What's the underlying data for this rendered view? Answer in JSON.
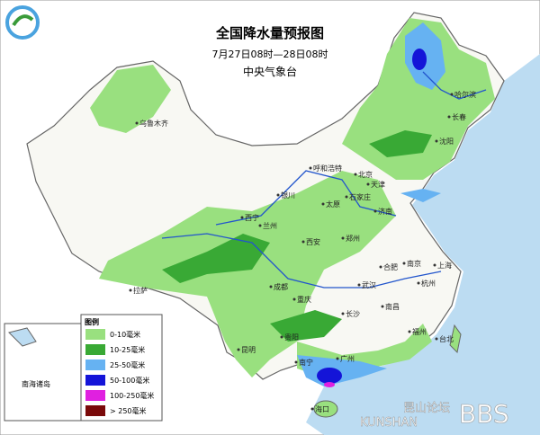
{
  "header": {
    "title": "全国降水量预报图",
    "period": "7月27日08时—28日08时",
    "source": "中央气象台"
  },
  "legend": {
    "title": "图例",
    "items": [
      {
        "label": "0-10毫米",
        "color": "#99e07f"
      },
      {
        "label": "10-25毫米",
        "color": "#39a935"
      },
      {
        "label": "25-50毫米",
        "color": "#66b2f2"
      },
      {
        "label": "50-100毫米",
        "color": "#1414d8"
      },
      {
        "label": "100-250毫米",
        "color": "#e020e0"
      },
      {
        "label": "> 250毫米",
        "color": "#7a0a0a"
      }
    ]
  },
  "inset": {
    "label": "南海诸岛"
  },
  "cities": [
    "乌鲁木齐",
    "哈尔滨",
    "长春",
    "沈阳",
    "呼和浩特",
    "北京",
    "天津",
    "石家庄",
    "太原",
    "济南",
    "银川",
    "西宁",
    "兰州",
    "西安",
    "郑州",
    "合肥",
    "南京",
    "上海",
    "杭州",
    "武汉",
    "成都",
    "重庆",
    "长沙",
    "南昌",
    "贵阳",
    "昆明",
    "南宁",
    "广州",
    "福州",
    "台北",
    "拉萨",
    "海口"
  ],
  "watermark": {
    "cn": "昆山论坛",
    "en": "KUNSHAN",
    "bbs": "BBS"
  }
}
